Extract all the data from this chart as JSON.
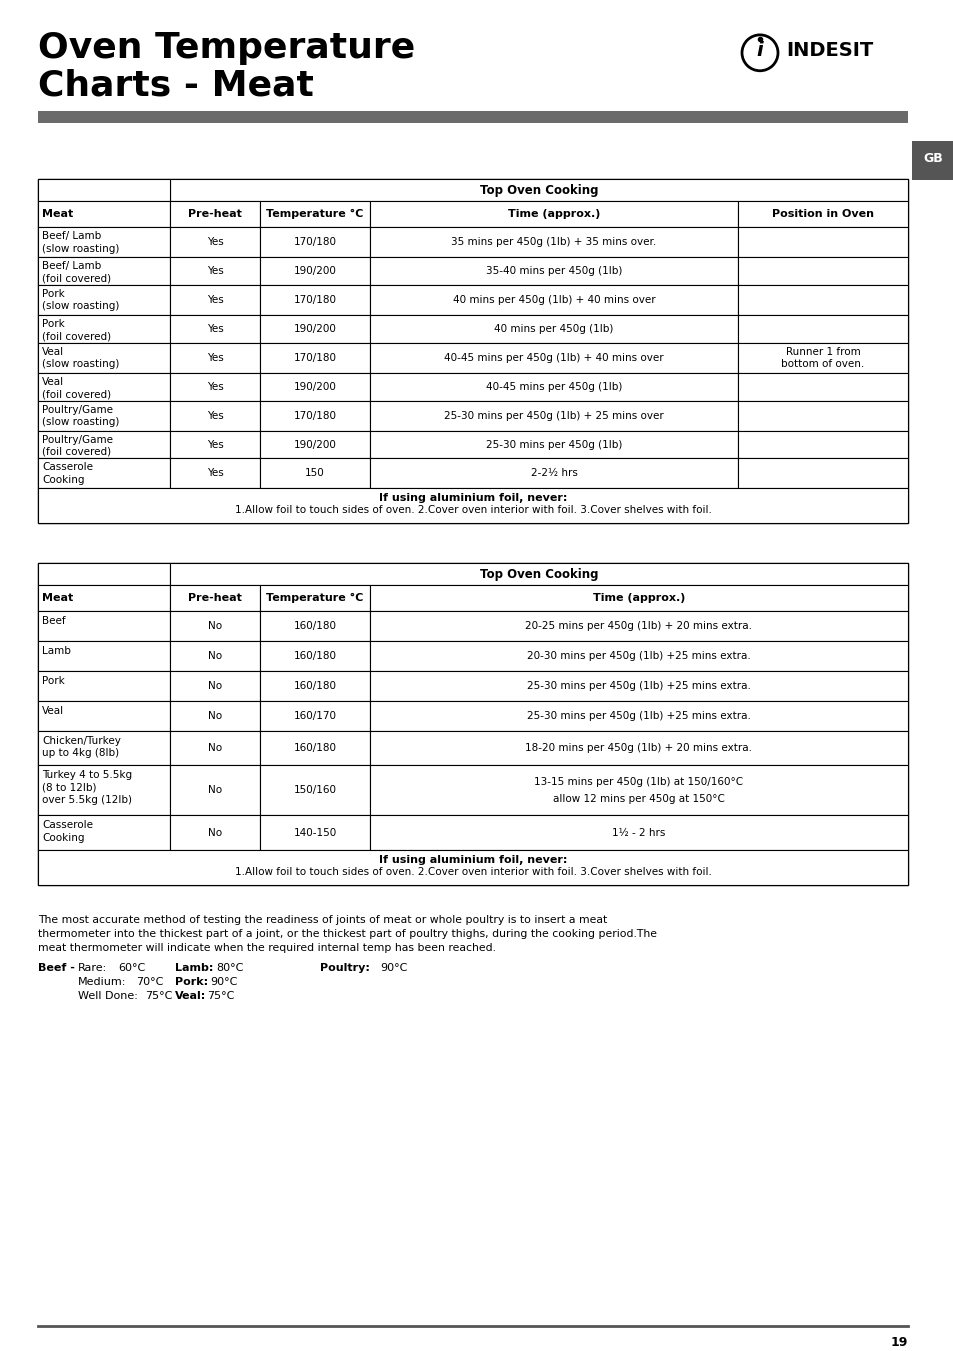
{
  "title_line1": "Oven Temperature",
  "title_line2": "Charts - Meat",
  "page_number": "19",
  "gb_label": "GB",
  "table1_header_main": "Top Oven Cooking",
  "table1_headers": [
    "Meat",
    "Pre-heat",
    "Temperature °C",
    "Time (approx.)",
    "Position in Oven"
  ],
  "table1_rows": [
    [
      "Beef/ Lamb\n(slow roasting)",
      "Yes",
      "170/180",
      "35 mins per 450g (1lb) + 35 mins over.",
      ""
    ],
    [
      "Beef/ Lamb\n(foil covered)",
      "Yes",
      "190/200",
      "35-40 mins per 450g (1lb)",
      ""
    ],
    [
      "Pork\n(slow roasting)",
      "Yes",
      "170/180",
      "40 mins per 450g (1lb) + 40 mins over",
      ""
    ],
    [
      "Pork\n(foil covered)",
      "Yes",
      "190/200",
      "40 mins per 450g (1lb)",
      ""
    ],
    [
      "Veal\n(slow roasting)",
      "Yes",
      "170/180",
      "40-45 mins per 450g (1lb) + 40 mins over",
      "Runner 1 from\nbottom of oven."
    ],
    [
      "Veal\n(foil covered)",
      "Yes",
      "190/200",
      "40-45 mins per 450g (1lb)",
      ""
    ],
    [
      "Poultry/Game\n(slow roasting)",
      "Yes",
      "170/180",
      "25-30 mins per 450g (1lb) + 25 mins over",
      ""
    ],
    [
      "Poultry/Game\n(foil covered)",
      "Yes",
      "190/200",
      "25-30 mins per 450g (1lb)",
      ""
    ],
    [
      "Casserole\nCooking",
      "Yes",
      "150",
      "2-2½ hrs",
      ""
    ]
  ],
  "table1_footnote_bold": "If using aluminium foil, never:",
  "table1_footnote": "1.Allow foil to touch sides of oven. 2.Cover oven interior with foil. 3.Cover shelves with foil.",
  "table1_footnote_bold2": "1.",
  "table1_footnote_bold3": "2.",
  "table1_footnote_bold4": "3.",
  "table2_header_main": "Top Oven Cooking",
  "table2_headers": [
    "Meat",
    "Pre-heat",
    "Temperature °C",
    "Time (approx.)"
  ],
  "table2_rows": [
    [
      "Beef",
      "No",
      "160/180",
      "20-25 mins per 450g (1lb) + 20 mins extra."
    ],
    [
      "Lamb",
      "No",
      "160/180",
      "20-30 mins per 450g (1lb) +25 mins extra."
    ],
    [
      "Pork",
      "No",
      "160/180",
      "25-30 mins per 450g (1lb) +25 mins extra."
    ],
    [
      "Veal",
      "No",
      "160/170",
      "25-30 mins per 450g (1lb) +25 mins extra."
    ],
    [
      "Chicken/Turkey\nup to 4kg (8lb)",
      "No",
      "160/180",
      "18-20 mins per 450g (1lb) + 20 mins extra."
    ],
    [
      "Turkey 4 to 5.5kg\n(8 to 12lb)\nover 5.5kg (12lb)",
      "No",
      "150/160",
      "13-15 mins per 450g (1lb) at 150/160°C\n\nallow 12 mins per 450g at 150°C"
    ],
    [
      "Casserole\nCooking",
      "No",
      "140-150",
      "1½ - 2 hrs"
    ]
  ],
  "table2_footnote_bold": "If using aluminium foil, never:",
  "table2_footnote": "1.Allow foil to touch sides of oven. 2.Cover oven interior with foil. 3.Cover shelves with foil.",
  "bottom_text_1": "The most accurate method of testing the readiness of joints of meat or whole poultry is to insert a meat",
  "bottom_text_2": "thermometer into the thickest part of a joint, or the thickest part of poultry thighs, during the cooking period.The",
  "bottom_text_3": "meat thermometer will indicate when the required internal temp has been reached.",
  "bottom_labels": [
    [
      "Beef -",
      "Rare:",
      "60°C",
      "Lamb: 80°C",
      "Poultry:",
      "90°C"
    ],
    [
      "",
      "Medium:",
      "70°C",
      "Pork: 90°C",
      "",
      ""
    ],
    [
      "",
      "Well Done:",
      "75°C",
      "Veal: 75°C",
      "",
      ""
    ]
  ],
  "bg_color": "#ffffff",
  "table_border_color": "#000000",
  "header_bg": "#ffffff",
  "text_color": "#000000",
  "gray_bar_color": "#666666",
  "gb_bg": "#555555"
}
